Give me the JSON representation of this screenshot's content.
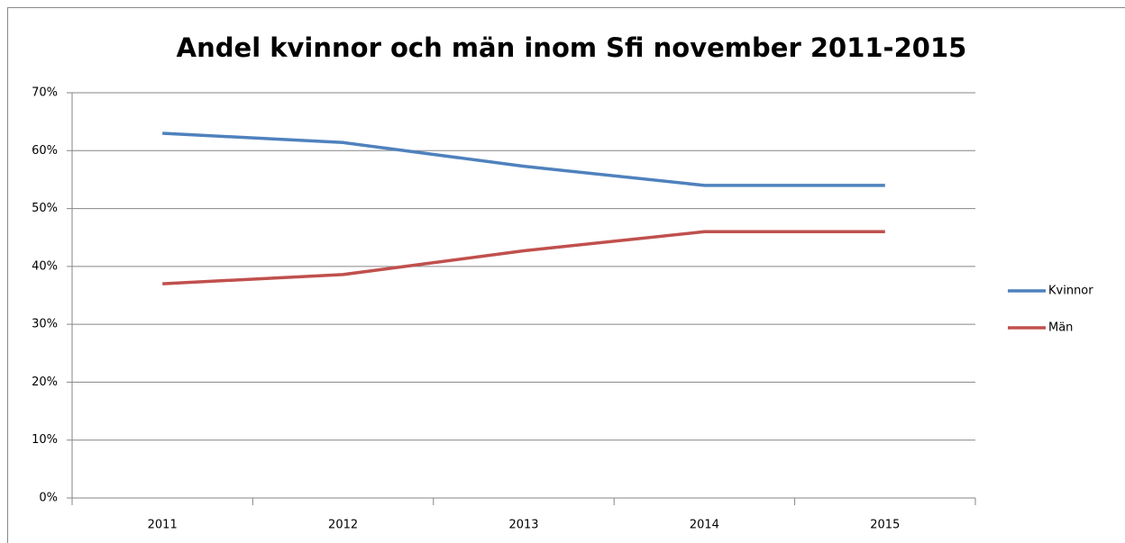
{
  "chart_data": {
    "type": "line",
    "title": "Andel kvinnor och män inom Sfi november 2011-2015",
    "categories": [
      "2011",
      "2012",
      "2013",
      "2014",
      "2015"
    ],
    "series": [
      {
        "name": "Kvinnor",
        "color": "#4f81bd",
        "values": [
          63,
          61.4,
          57.3,
          54,
          54
        ]
      },
      {
        "name": "Män",
        "color": "#c0504d",
        "values": [
          37,
          38.6,
          42.7,
          46,
          46
        ]
      }
    ],
    "ylim": [
      0,
      70
    ],
    "yticks": [
      {
        "value": 0,
        "label": "0%"
      },
      {
        "value": 10,
        "label": "10%"
      },
      {
        "value": 20,
        "label": "20%"
      },
      {
        "value": 30,
        "label": "30%"
      },
      {
        "value": 40,
        "label": "40%"
      },
      {
        "value": 50,
        "label": "50%"
      },
      {
        "value": 60,
        "label": "60%"
      },
      {
        "value": 70,
        "label": "70%"
      }
    ],
    "grid": true,
    "legend": "right"
  }
}
